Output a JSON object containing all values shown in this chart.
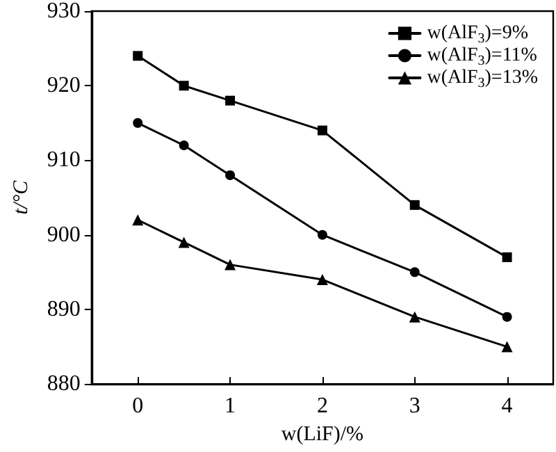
{
  "chart_data": {
    "type": "line",
    "xlabel": "w(LiF)/%",
    "ylabel": "t/°C",
    "x": [
      0,
      0.5,
      1,
      2,
      3,
      4
    ],
    "xlim": [
      -0.5,
      4.5
    ],
    "xticks": [
      0,
      1,
      2,
      3,
      4
    ],
    "ylim": [
      880,
      930
    ],
    "yticks": [
      880,
      890,
      900,
      910,
      920,
      930
    ],
    "grid": false,
    "legend": "top right",
    "line_style": "solid",
    "series": [
      {
        "name": "w(AlF$_{3}$)=9%",
        "color": "#000000",
        "marker": "square",
        "values": [
          924,
          920,
          918,
          914,
          904,
          897
        ]
      },
      {
        "name": "w(AlF$_{3}$)=11%",
        "color": "#000000",
        "marker": "circle",
        "values": [
          915,
          912,
          908,
          900,
          895,
          889
        ]
      },
      {
        "name": "w(AlF$_{3}$)=13%",
        "color": "#000000",
        "marker": "triangle",
        "values": [
          902,
          899,
          896,
          894,
          889,
          885
        ]
      }
    ]
  }
}
